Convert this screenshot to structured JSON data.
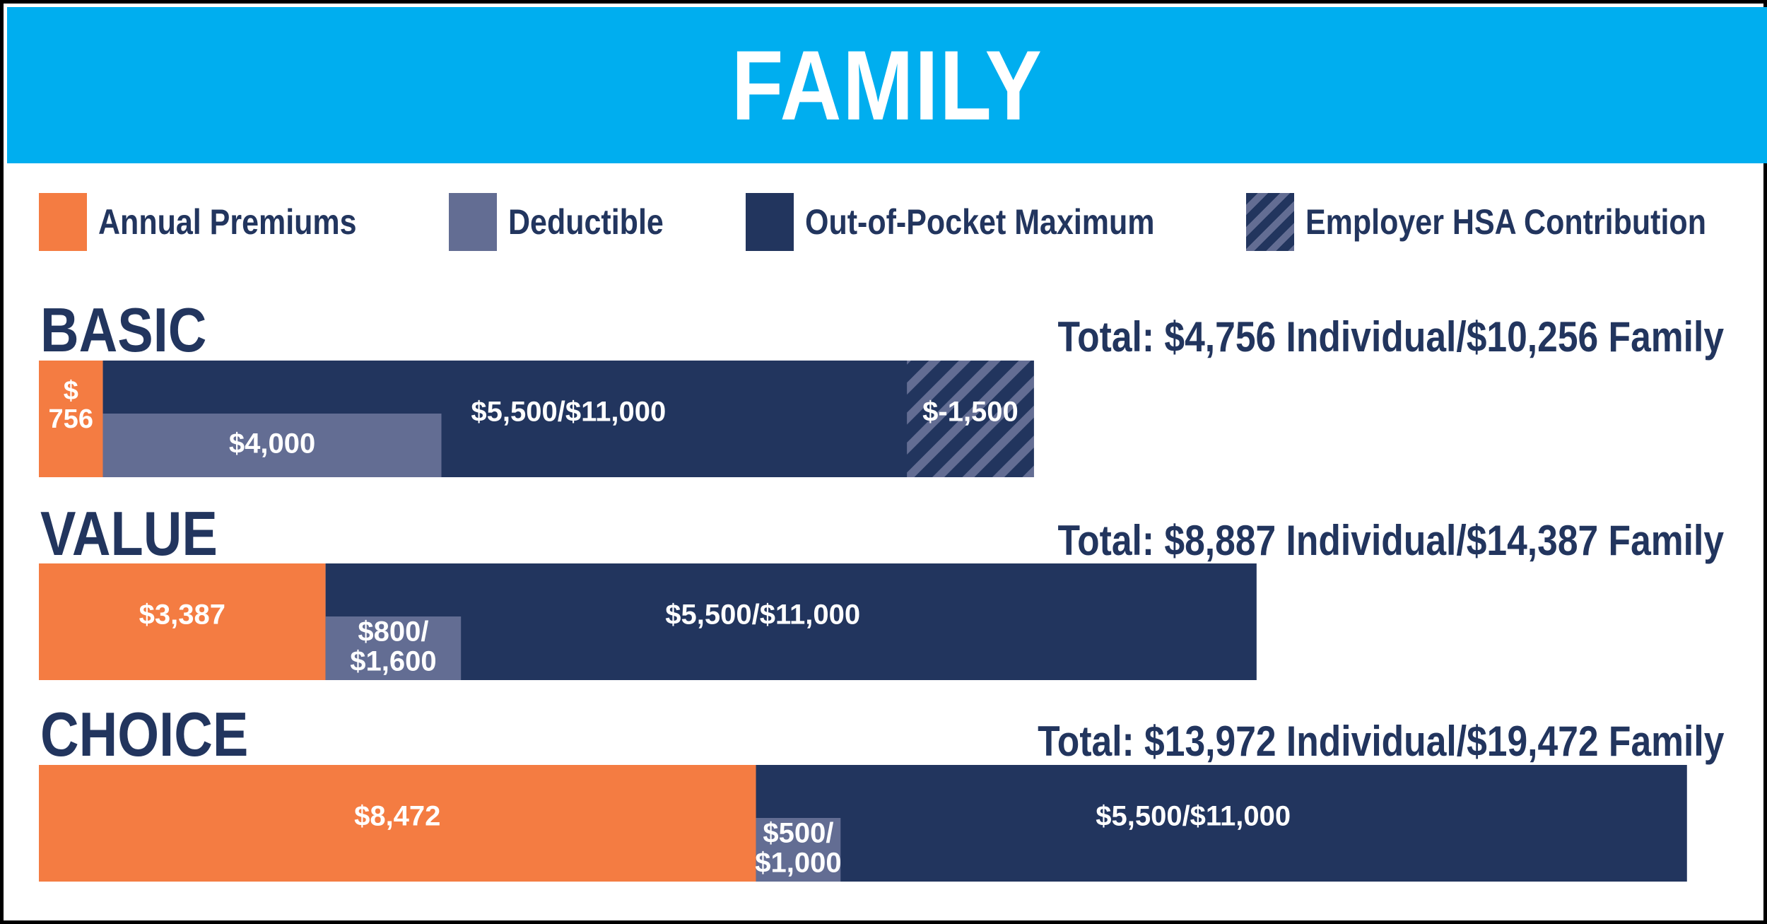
{
  "title": "FAMILY",
  "colors": {
    "header": "#00aeef",
    "premium": "#f47c42",
    "deductible": "#636d93",
    "oop": "#22355e",
    "hsa": "#22355e",
    "hsa_stripe": "#636d93",
    "text_dark": "#22355e",
    "text_light": "#ffffff"
  },
  "legend": [
    {
      "key": "premium",
      "label": "Annual Premiums",
      "icon": "orange-square"
    },
    {
      "key": "deductible",
      "label": "Deductible",
      "icon": "slate-square"
    },
    {
      "key": "oop",
      "label": "Out-of-Pocket Maximum",
      "icon": "navy-square"
    },
    {
      "key": "hsa",
      "label": "Employer HSA Contribution",
      "icon": "hatched-square"
    }
  ],
  "chart_data": {
    "type": "bar",
    "orientation": "horizontal",
    "title": "FAMILY",
    "legend_position": "top",
    "grid": false,
    "xlim": [
      0,
      20000
    ],
    "plans": [
      {
        "name": "BASIC",
        "total_label": "Total: $4,756 Individual/$10,256 Family",
        "premium": 756,
        "premium_label": "$ 756",
        "deductible": 4000,
        "deductible_label": "$4,000",
        "oop_max": 11000,
        "oop_label": "$5,500/$11,000",
        "hsa": -1500,
        "hsa_label": "$-1,500",
        "total_family": 10256
      },
      {
        "name": "VALUE",
        "total_label": "Total: $8,887 Individual/$14,387 Family",
        "premium": 3387,
        "premium_label": "$3,387",
        "deductible": 1600,
        "deductible_label": "$800/ $1,600",
        "oop_max": 11000,
        "oop_label": "$5,500/$11,000",
        "total_family": 14387
      },
      {
        "name": "CHOICE",
        "total_label": "Total: $13,972 Individual/$19,472 Family",
        "premium": 8472,
        "premium_label": "$8,472",
        "deductible": 1000,
        "deductible_label": "$500/ $1,000",
        "oop_max": 11000,
        "oop_label": "$5,500/$11,000",
        "total_family": 19472
      }
    ]
  }
}
